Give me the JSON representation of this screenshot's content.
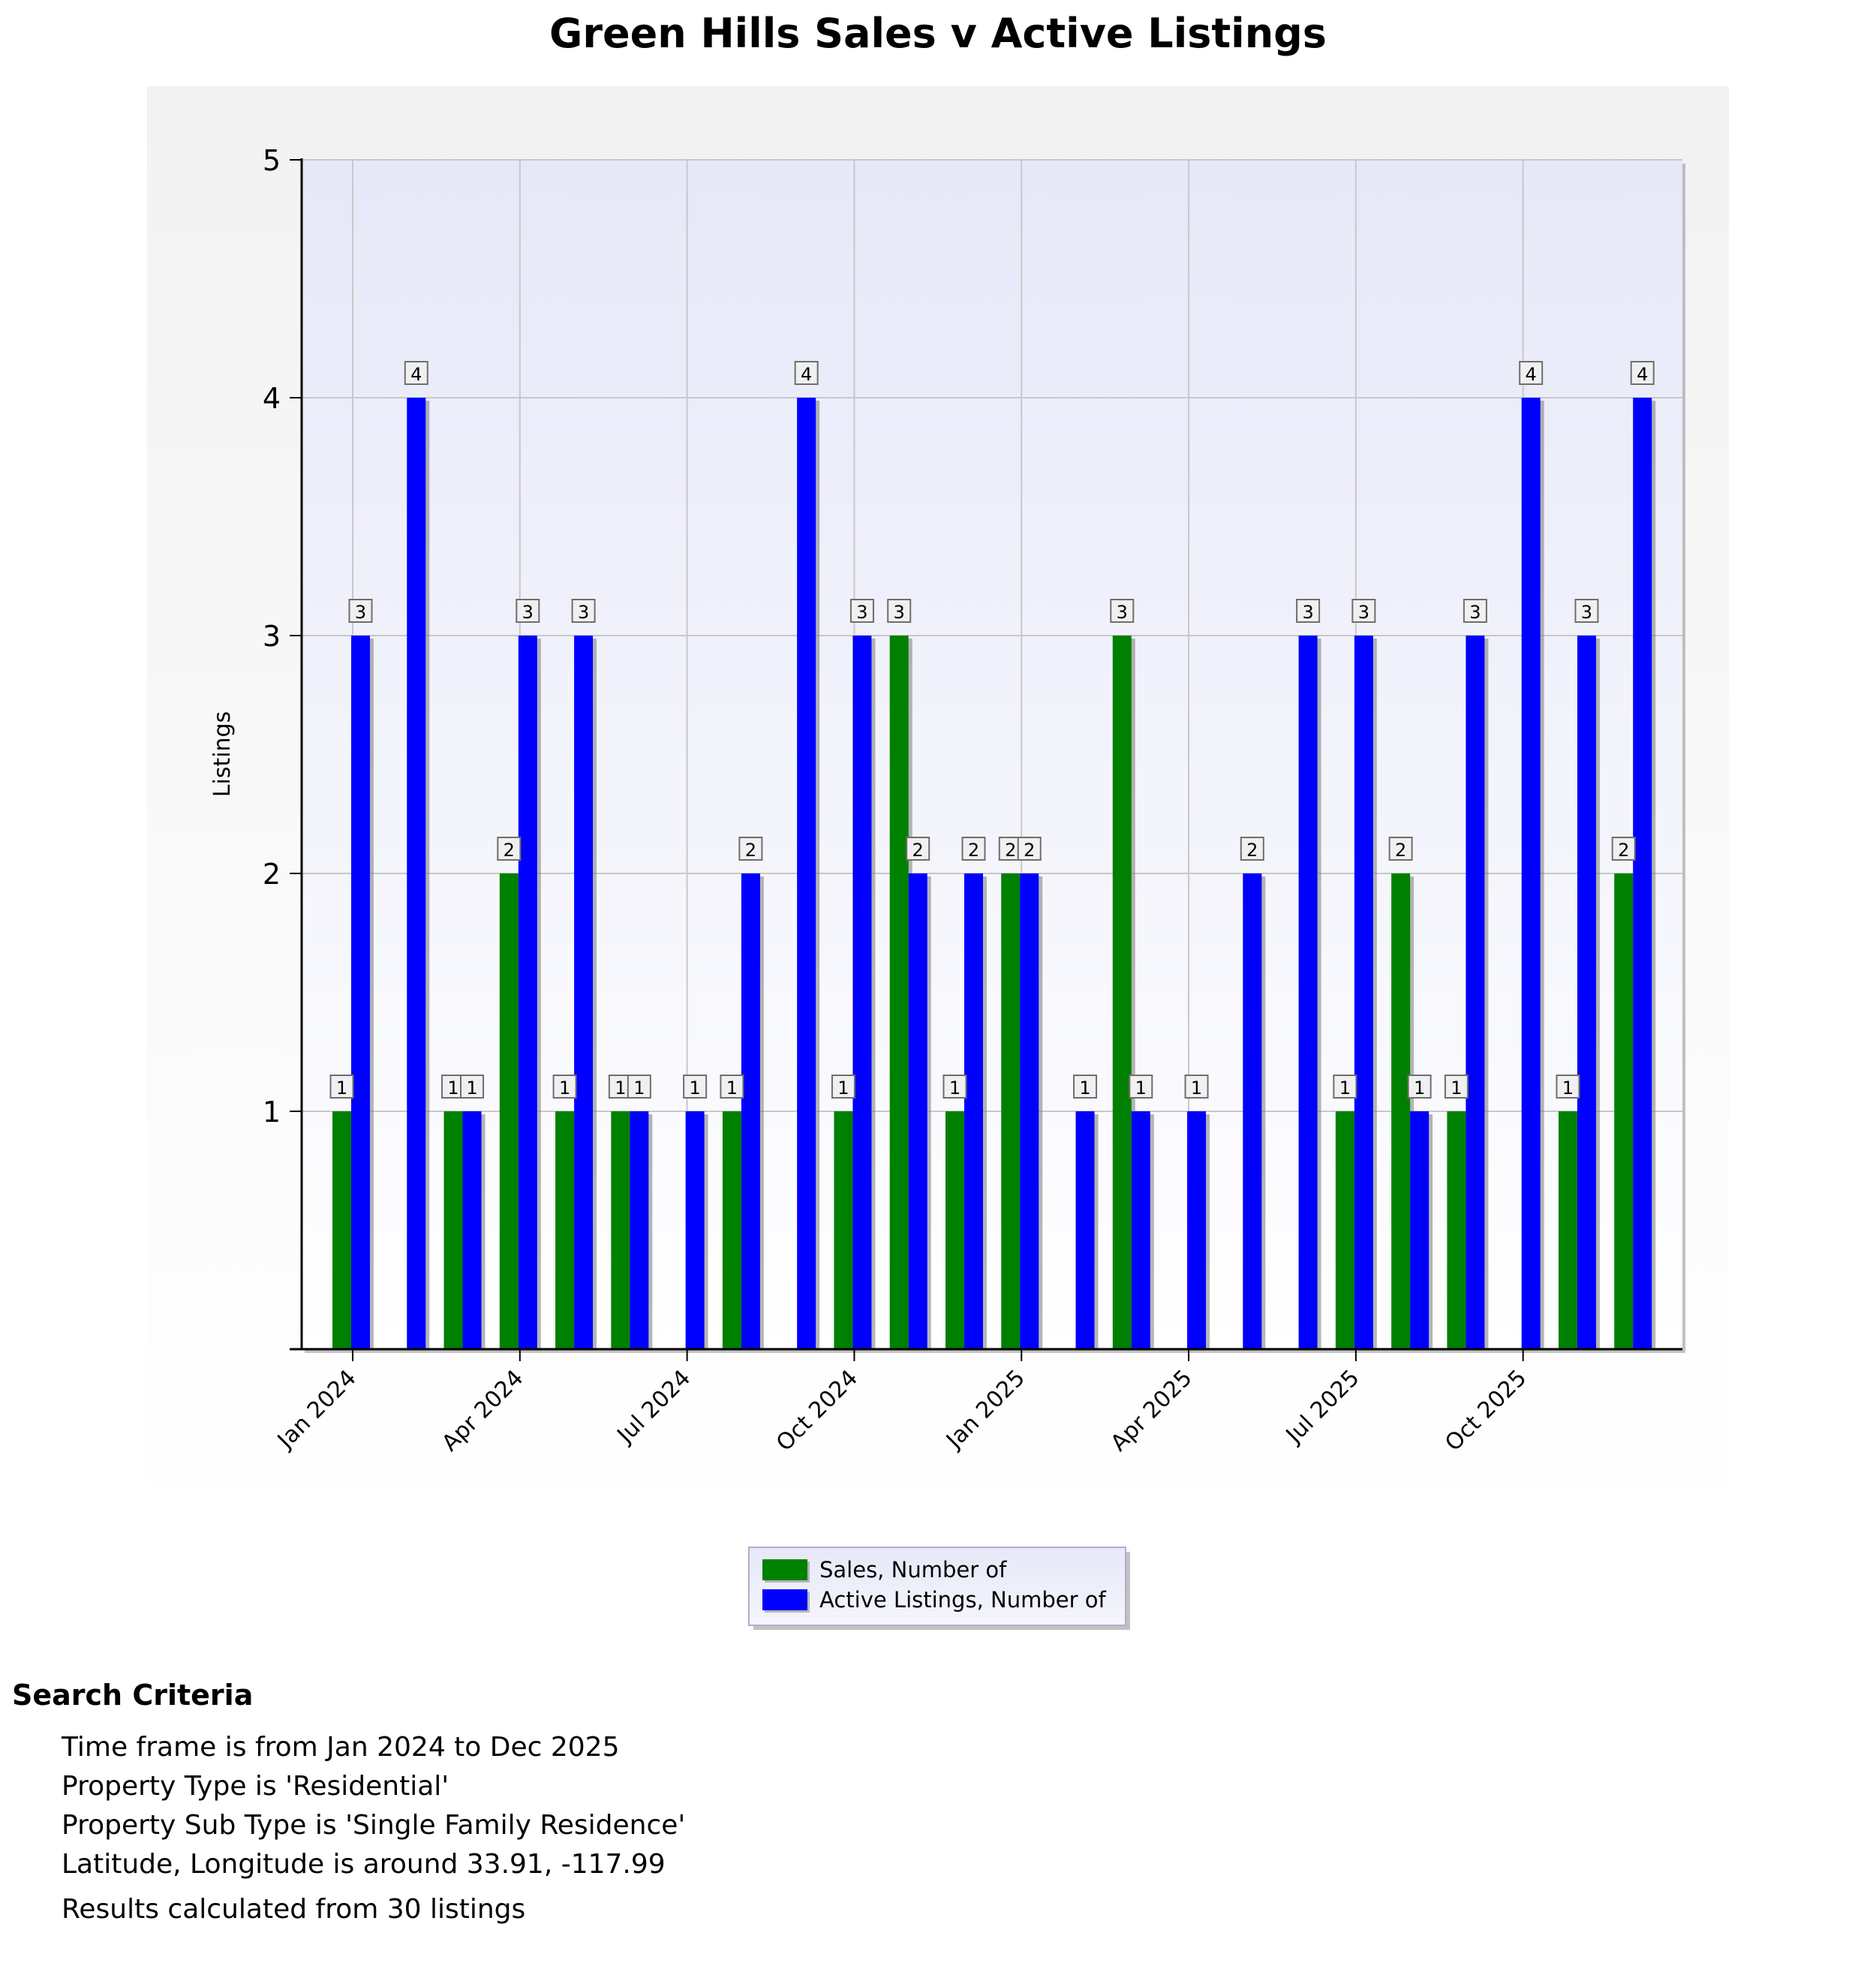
{
  "chart_data": {
    "type": "bar",
    "title": "Green Hills Sales v Active Listings",
    "ylabel": "Listings",
    "xlabel": "",
    "ylim": [
      0,
      5
    ],
    "yticks": [
      "1",
      "2",
      "3",
      "4",
      "5"
    ],
    "x_tick_labels": [
      "Jan 2024",
      "Apr 2024",
      "Jul 2024",
      "Oct 2024",
      "Jan 2025",
      "Apr 2025",
      "Jul 2025",
      "Oct 2025"
    ],
    "grid": true,
    "legend_position": "bottom-center",
    "categories": [
      "Jan 2024",
      "Feb 2024",
      "Mar 2024",
      "Apr 2024",
      "May 2024",
      "Jun 2024",
      "Jul 2024",
      "Aug 2024",
      "Sep 2024",
      "Oct 2024",
      "Nov 2024",
      "Dec 2024",
      "Jan 2025",
      "Feb 2025",
      "Mar 2025",
      "Apr 2025",
      "May 2025",
      "Jun 2025",
      "Jul 2025",
      "Aug 2025",
      "Sep 2025",
      "Oct 2025",
      "Nov 2025",
      "Dec 2025"
    ],
    "series": [
      {
        "name": "Sales, Number of",
        "color": "#008000",
        "values": [
          1,
          0,
          1,
          2,
          1,
          1,
          0,
          1,
          0,
          1,
          3,
          1,
          2,
          0,
          3,
          0,
          0,
          0,
          1,
          2,
          1,
          0,
          1,
          2
        ]
      },
      {
        "name": "Active Listings, Number of",
        "color": "#0000ff",
        "values": [
          3,
          4,
          1,
          3,
          3,
          1,
          1,
          2,
          4,
          3,
          2,
          2,
          2,
          1,
          1,
          1,
          2,
          3,
          3,
          1,
          3,
          4,
          3,
          4
        ]
      }
    ]
  },
  "criteria": {
    "title": "Search Criteria",
    "lines": [
      "Time frame is from Jan 2024 to Dec 2025",
      "Property Type is 'Residential'",
      "Property Sub Type is 'Single Family Residence'",
      "Latitude, Longitude is around 33.91, -117.99"
    ],
    "results": "Results calculated from 30 listings"
  }
}
